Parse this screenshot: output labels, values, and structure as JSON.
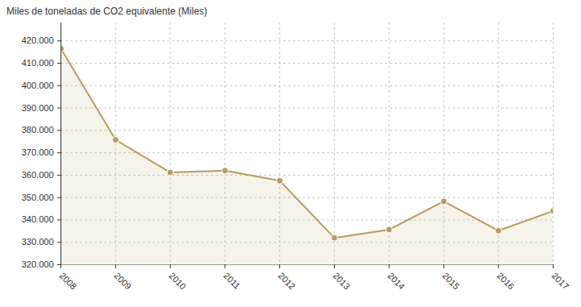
{
  "chart_data": {
    "type": "area",
    "title": "Miles de toneladas de CO2 equivalente (Miles)",
    "x": [
      2008,
      2009,
      2010,
      2011,
      2012,
      2013,
      2014,
      2015,
      2016,
      2017
    ],
    "values": [
      416500,
      375800,
      361200,
      362000,
      357500,
      332000,
      335700,
      348300,
      335200,
      344000
    ],
    "color": "#b89b5e",
    "marker": "circle",
    "grid": true,
    "xlim": [
      2008,
      2017
    ],
    "xticks": [
      2008,
      2009,
      2010,
      2011,
      2012,
      2013,
      2014,
      2015,
      2016,
      2017
    ],
    "ylim": [
      320000,
      428000
    ],
    "yticks": [
      {
        "value": 320000,
        "label": "320.000"
      },
      {
        "value": 330000,
        "label": "330.000"
      },
      {
        "value": 340000,
        "label": "340.000"
      },
      {
        "value": 350000,
        "label": "350.000"
      },
      {
        "value": 360000,
        "label": "360.000"
      },
      {
        "value": 370000,
        "label": "370.000"
      },
      {
        "value": 380000,
        "label": "380.000"
      },
      {
        "value": 390000,
        "label": "390.000"
      },
      {
        "value": 400000,
        "label": "400.000"
      },
      {
        "value": 410000,
        "label": "410.000"
      },
      {
        "value": 420000,
        "label": "420.000"
      }
    ]
  }
}
